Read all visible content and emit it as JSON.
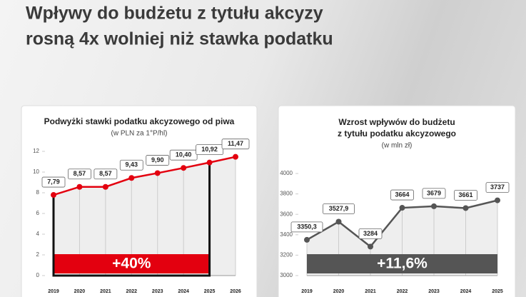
{
  "header": {
    "title": [
      "Wpływy do budżetu z tytułu akcyzy",
      "rosną 4x wolniej niż stawka podatku"
    ]
  },
  "chart_data": [
    {
      "type": "line",
      "title": [
        "Podwyżki stawki podatku akcyzowego od piwa"
      ],
      "subtitle": "(w PLN za 1°P/hl)",
      "categories": [
        "2019",
        "2020",
        "2021",
        "2022",
        "2023",
        "2024",
        "2025",
        "2026"
      ],
      "values": [
        7.79,
        8.57,
        8.57,
        9.43,
        9.9,
        10.4,
        10.92,
        11.47
      ],
      "value_labels": [
        "7,79",
        "8,57",
        "8,57",
        "9,43",
        "9,90",
        "10,40",
        "10,92",
        "11,47"
      ],
      "color": "#e3000f",
      "ylim": [
        0,
        12
      ],
      "yticks": [
        0,
        2,
        4,
        6,
        8,
        10,
        12
      ],
      "annotation": "+40%"
    },
    {
      "type": "line",
      "title": [
        "Wzrost wpływów do budżetu",
        "z tytułu podatku akcyzowego"
      ],
      "subtitle": "(w mln zł)",
      "categories": [
        "2019",
        "2020",
        "2021",
        "2022",
        "2023",
        "2024",
        "2025"
      ],
      "values": [
        3350.3,
        3527.9,
        3284,
        3664,
        3679,
        3661,
        3737
      ],
      "value_labels": [
        "3350,3",
        "3527,9",
        "3284",
        "3664",
        "3679",
        "3661",
        "3737"
      ],
      "color": "#555555",
      "ylim": [
        3000,
        4000
      ],
      "yticks": [
        3000,
        3200,
        3400,
        3600,
        3800,
        4000
      ],
      "annotation": "+11,6%"
    }
  ]
}
